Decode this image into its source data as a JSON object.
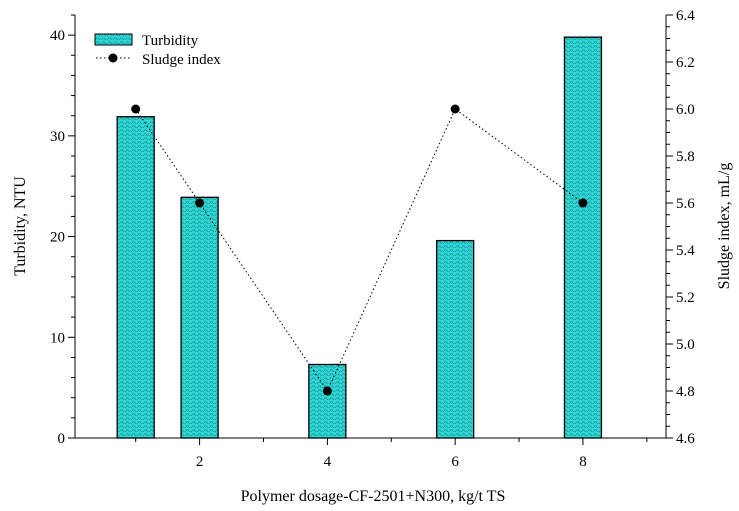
{
  "chart_data": {
    "type": "bar",
    "title": "",
    "xlabel": "Polymer dosage-CF-2501+N300, kg/t TS",
    "ylabel": "Turbidity, NTU",
    "y2label": "Sludge index, mL/g",
    "xlim": [
      0.05,
      9.3
    ],
    "ylim": [
      0,
      42
    ],
    "y2lim": [
      4.6,
      6.4
    ],
    "x_ticks": [
      2,
      4,
      6,
      8
    ],
    "y_ticks": [
      0,
      10,
      20,
      30,
      40
    ],
    "y2_ticks": [
      "4.6",
      "4.8",
      "5.0",
      "5.2",
      "5.4",
      "5.6",
      "5.8",
      "6.0",
      "6.2",
      "6.4"
    ],
    "legend_position": "top-left",
    "bar_color": "#2fd4d4",
    "series": [
      {
        "name": "Turbidity",
        "kind": "bar",
        "axis": "left",
        "x": [
          1,
          2,
          4,
          6,
          8
        ],
        "values": [
          31.9,
          23.9,
          7.3,
          19.6,
          39.8
        ]
      },
      {
        "name": "Sludge index",
        "kind": "line-dotted-markers",
        "axis": "right",
        "x": [
          1,
          2,
          4,
          6,
          8
        ],
        "values": [
          6.0,
          5.6,
          4.8,
          6.0,
          5.6
        ]
      }
    ]
  }
}
